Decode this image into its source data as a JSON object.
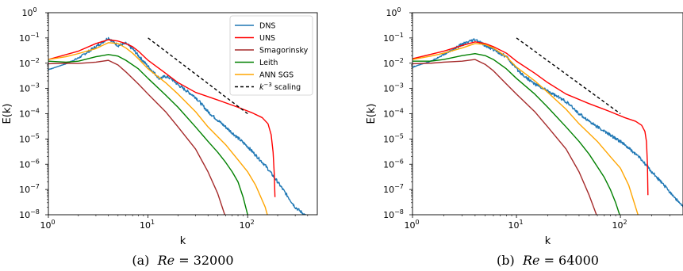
{
  "chart_data": [
    {
      "type": "line",
      "caption_prefix": "(a)",
      "caption_var": "Re",
      "caption_value": "= 32000",
      "xlabel": "k",
      "ylabel": "E(k)",
      "xscale": "log",
      "yscale": "log",
      "xlim": [
        1,
        500
      ],
      "ylim": [
        1e-08,
        1
      ],
      "xticks": [
        {
          "v": 1,
          "base": "10",
          "exp": "0"
        },
        {
          "v": 10,
          "base": "10",
          "exp": "1"
        },
        {
          "v": 100,
          "base": "10",
          "exp": "2"
        }
      ],
      "yticks": [
        {
          "v": 1e-08,
          "base": "10",
          "exp": "−8"
        },
        {
          "v": 1e-07,
          "base": "10",
          "exp": "−7"
        },
        {
          "v": 1e-06,
          "base": "10",
          "exp": "−6"
        },
        {
          "v": 1e-05,
          "base": "10",
          "exp": "−5"
        },
        {
          "v": 0.0001,
          "base": "10",
          "exp": "−4"
        },
        {
          "v": 0.001,
          "base": "10",
          "exp": "−3"
        },
        {
          "v": 0.01,
          "base": "10",
          "exp": "−2"
        },
        {
          "v": 0.1,
          "base": "10",
          "exp": "−1"
        },
        {
          "v": 1,
          "base": "10",
          "exp": "0"
        }
      ],
      "grid": false,
      "legend": {
        "placement": "top-right",
        "entries": [
          {
            "label": "DNS",
            "color": "#1f77b4",
            "dashed": false
          },
          {
            "label": "UNS",
            "color": "#ff0000",
            "dashed": false
          },
          {
            "label": "Smagorinsky",
            "color": "#a52a2a",
            "dashed": false
          },
          {
            "label": "Leith",
            "color": "#008000",
            "dashed": false
          },
          {
            "label": "ANN SGS",
            "color": "#ffa500",
            "dashed": false
          },
          {
            "label_pre": "k",
            "label_sup": "−3",
            "label_post": " scaling",
            "color": "#000000",
            "dashed": true
          }
        ]
      },
      "series": [
        {
          "color": "#1f77b4",
          "noise": 0.06,
          "points": [
            [
              1,
              0.0055
            ],
            [
              1.5,
              0.0095
            ],
            [
              2,
              0.016
            ],
            [
              3,
              0.045
            ],
            [
              4,
              0.1
            ],
            [
              5,
              0.05
            ],
            [
              6,
              0.06
            ],
            [
              7,
              0.037
            ],
            [
              8,
              0.02
            ],
            [
              10,
              0.0075
            ],
            [
              13,
              0.0025
            ],
            [
              15,
              0.003
            ],
            [
              17,
              0.0025
            ],
            [
              20,
              0.0014
            ],
            [
              30,
              0.00045
            ],
            [
              40,
              0.00012
            ],
            [
              60,
              3e-05
            ],
            [
              100,
              5e-06
            ],
            [
              150,
              9e-07
            ],
            [
              200,
              2e-07
            ],
            [
              300,
              2e-08
            ],
            [
              400,
              8e-09
            ]
          ]
        },
        {
          "color": "#ff0000",
          "noise": 0,
          "points": [
            [
              1,
              0.014
            ],
            [
              2,
              0.03
            ],
            [
              3,
              0.06
            ],
            [
              4,
              0.085
            ],
            [
              5,
              0.075
            ],
            [
              6,
              0.06
            ],
            [
              7,
              0.045
            ],
            [
              8,
              0.03
            ],
            [
              10,
              0.013
            ],
            [
              15,
              0.004
            ],
            [
              20,
              0.0017
            ],
            [
              30,
              0.0007
            ],
            [
              50,
              0.00035
            ],
            [
              80,
              0.00018
            ],
            [
              110,
              0.00011
            ],
            [
              140,
              7e-05
            ],
            [
              160,
              4e-05
            ],
            [
              172,
              1.5e-05
            ],
            [
              180,
              3e-06
            ],
            [
              185,
              4e-07
            ],
            [
              188,
              5e-08
            ]
          ]
        },
        {
          "color": "#a52a2a",
          "noise": 0,
          "points": [
            [
              1,
              0.0095
            ],
            [
              1.5,
              0.01
            ],
            [
              2,
              0.0098
            ],
            [
              3,
              0.011
            ],
            [
              4,
              0.013
            ],
            [
              5,
              0.0085
            ],
            [
              6,
              0.0045
            ],
            [
              8,
              0.0015
            ],
            [
              10,
              0.0006
            ],
            [
              15,
              0.00012
            ],
            [
              20,
              3e-05
            ],
            [
              30,
              4e-06
            ],
            [
              40,
              5e-07
            ],
            [
              50,
              7e-08
            ],
            [
              60,
              8e-09
            ]
          ]
        },
        {
          "color": "#008000",
          "noise": 0,
          "points": [
            [
              1,
              0.012
            ],
            [
              1.5,
              0.011
            ],
            [
              2,
              0.012
            ],
            [
              3,
              0.018
            ],
            [
              4,
              0.022
            ],
            [
              5,
              0.019
            ],
            [
              6,
              0.013
            ],
            [
              8,
              0.006
            ],
            [
              10,
              0.0025
            ],
            [
              15,
              0.00055
            ],
            [
              20,
              0.00018
            ],
            [
              30,
              3e-05
            ],
            [
              40,
              8e-06
            ],
            [
              50,
              3e-06
            ],
            [
              60,
              1.2e-06
            ],
            [
              70,
              5e-07
            ],
            [
              80,
              2e-07
            ],
            [
              90,
              5e-08
            ],
            [
              100,
              1e-08
            ]
          ]
        },
        {
          "color": "#ffa500",
          "noise": 0,
          "points": [
            [
              1,
              0.014
            ],
            [
              1.5,
              0.018
            ],
            [
              2,
              0.024
            ],
            [
              3,
              0.038
            ],
            [
              4,
              0.065
            ],
            [
              5,
              0.06
            ],
            [
              6,
              0.04
            ],
            [
              7,
              0.025
            ],
            [
              8,
              0.015
            ],
            [
              10,
              0.006
            ],
            [
              15,
              0.0017
            ],
            [
              20,
              0.0006
            ],
            [
              30,
              0.00012
            ],
            [
              40,
              3e-05
            ],
            [
              60,
              6e-06
            ],
            [
              80,
              1.5e-06
            ],
            [
              100,
              5e-07
            ],
            [
              120,
              1.5e-07
            ],
            [
              150,
              2e-08
            ],
            [
              160,
              8e-09
            ]
          ]
        },
        {
          "color": "#000000",
          "dashed": true,
          "noise": 0,
          "points": [
            [
              10,
              0.1
            ],
            [
              100,
              0.0001
            ]
          ]
        }
      ]
    },
    {
      "type": "line",
      "caption_prefix": "(b)",
      "caption_var": "Re",
      "caption_value": "= 64000",
      "xlabel": "k",
      "ylabel": "E(k)",
      "xscale": "log",
      "yscale": "log",
      "xlim": [
        1,
        400
      ],
      "ylim": [
        1e-08,
        1
      ],
      "xticks": [
        {
          "v": 1,
          "base": "10",
          "exp": "0"
        },
        {
          "v": 10,
          "base": "10",
          "exp": "1"
        },
        {
          "v": 100,
          "base": "10",
          "exp": "2"
        }
      ],
      "yticks": [
        {
          "v": 1e-08,
          "base": "10",
          "exp": "−8"
        },
        {
          "v": 1e-07,
          "base": "10",
          "exp": "−7"
        },
        {
          "v": 1e-06,
          "base": "10",
          "exp": "−6"
        },
        {
          "v": 1e-05,
          "base": "10",
          "exp": "−5"
        },
        {
          "v": 0.0001,
          "base": "10",
          "exp": "−4"
        },
        {
          "v": 0.001,
          "base": "10",
          "exp": "−3"
        },
        {
          "v": 0.01,
          "base": "10",
          "exp": "−2"
        },
        {
          "v": 0.1,
          "base": "10",
          "exp": "−1"
        },
        {
          "v": 1,
          "base": "10",
          "exp": "0"
        }
      ],
      "grid": false,
      "series": [
        {
          "color": "#1f77b4",
          "noise": 0.06,
          "points": [
            [
              1,
              0.007
            ],
            [
              1.5,
              0.012
            ],
            [
              2,
              0.022
            ],
            [
              3,
              0.055
            ],
            [
              4,
              0.085
            ],
            [
              5,
              0.05
            ],
            [
              6,
              0.035
            ],
            [
              8,
              0.018
            ],
            [
              10,
              0.006
            ],
            [
              12,
              0.003
            ],
            [
              15,
              0.0015
            ],
            [
              20,
              0.0008
            ],
            [
              30,
              0.0003
            ],
            [
              40,
              0.0001
            ],
            [
              60,
              3e-05
            ],
            [
              100,
              8e-06
            ],
            [
              150,
              2e-06
            ],
            [
              200,
              5e-07
            ],
            [
              300,
              8e-08
            ],
            [
              400,
              2e-08
            ]
          ]
        },
        {
          "color": "#ff0000",
          "noise": 0,
          "points": [
            [
              1,
              0.015
            ],
            [
              2,
              0.03
            ],
            [
              3,
              0.05
            ],
            [
              4,
              0.07
            ],
            [
              5,
              0.06
            ],
            [
              6,
              0.045
            ],
            [
              8,
              0.025
            ],
            [
              10,
              0.012
            ],
            [
              15,
              0.004
            ],
            [
              20,
              0.0017
            ],
            [
              30,
              0.0006
            ],
            [
              50,
              0.00025
            ],
            [
              80,
              0.00012
            ],
            [
              110,
              7e-05
            ],
            [
              140,
              5e-05
            ],
            [
              160,
              3.5e-05
            ],
            [
              172,
              2e-05
            ],
            [
              178,
              8e-06
            ],
            [
              182,
              1e-06
            ],
            [
              184,
              6e-08
            ]
          ]
        },
        {
          "color": "#a52a2a",
          "noise": 0,
          "points": [
            [
              1,
              0.0095
            ],
            [
              1.5,
              0.01
            ],
            [
              2,
              0.011
            ],
            [
              3,
              0.012
            ],
            [
              4,
              0.014
            ],
            [
              5,
              0.009
            ],
            [
              6,
              0.005
            ],
            [
              8,
              0.0015
            ],
            [
              10,
              0.0006
            ],
            [
              15,
              0.00012
            ],
            [
              20,
              3e-05
            ],
            [
              30,
              4e-06
            ],
            [
              40,
              5e-07
            ],
            [
              50,
              6e-08
            ],
            [
              60,
              8e-09
            ]
          ]
        },
        {
          "color": "#008000",
          "noise": 0,
          "points": [
            [
              1,
              0.012
            ],
            [
              1.5,
              0.012
            ],
            [
              2,
              0.014
            ],
            [
              3,
              0.02
            ],
            [
              4,
              0.024
            ],
            [
              5,
              0.02
            ],
            [
              6,
              0.014
            ],
            [
              8,
              0.006
            ],
            [
              10,
              0.0025
            ],
            [
              15,
              0.0006
            ],
            [
              20,
              0.00018
            ],
            [
              30,
              3e-05
            ],
            [
              40,
              8e-06
            ],
            [
              50,
              2.5e-06
            ],
            [
              60,
              8e-07
            ],
            [
              70,
              3e-07
            ],
            [
              80,
              1e-07
            ],
            [
              90,
              3e-08
            ],
            [
              100,
              8e-09
            ]
          ]
        },
        {
          "color": "#ffa500",
          "noise": 0,
          "points": [
            [
              1,
              0.014
            ],
            [
              1.5,
              0.019
            ],
            [
              2,
              0.025
            ],
            [
              3,
              0.04
            ],
            [
              4,
              0.06
            ],
            [
              5,
              0.055
            ],
            [
              6,
              0.04
            ],
            [
              8,
              0.018
            ],
            [
              10,
              0.007
            ],
            [
              15,
              0.002
            ],
            [
              20,
              0.0007
            ],
            [
              30,
              0.00015
            ],
            [
              40,
              4e-05
            ],
            [
              60,
              8e-06
            ],
            [
              80,
              2e-06
            ],
            [
              100,
              7e-07
            ],
            [
              120,
              1.5e-07
            ],
            [
              140,
              2e-08
            ],
            [
              150,
              8e-09
            ]
          ]
        },
        {
          "color": "#000000",
          "dashed": true,
          "noise": 0,
          "points": [
            [
              10,
              0.1
            ],
            [
              100,
              0.0001
            ]
          ]
        }
      ]
    }
  ]
}
